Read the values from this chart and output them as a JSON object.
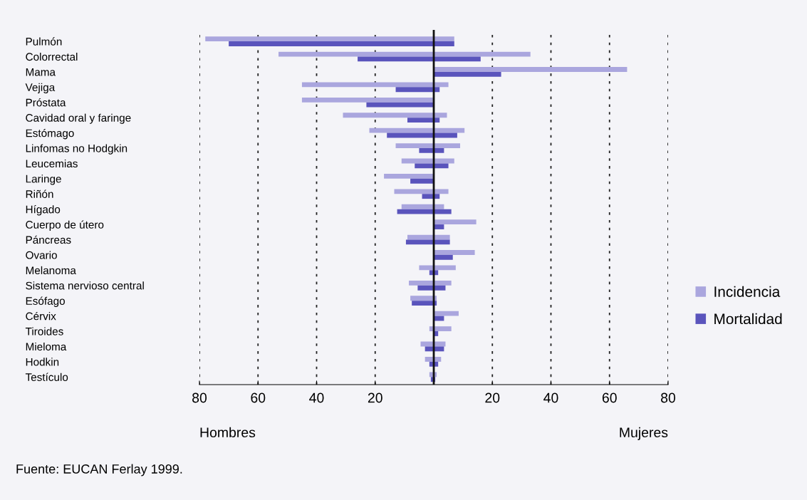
{
  "chart_data": {
    "type": "bar",
    "orientation": "horizontal",
    "categories": [
      "Pulmón",
      "Colorrectal",
      "Mama",
      "Vejiga",
      "Próstata",
      "Cavidad oral y faringe",
      "Estómago",
      "Linfomas no Hodgkin",
      "Leucemias",
      "Laringe",
      "Riñón",
      "Hígado",
      "Cuerpo de útero",
      "Páncreas",
      "Ovario",
      "Melanoma",
      "Sistema nervioso central",
      "Esófago",
      "Cérvix",
      "Tiroides",
      "Mieloma",
      "Hodkin",
      "Testículo"
    ],
    "series": [
      {
        "name": "Incidencia",
        "color": "#aaa6de",
        "base": [
          -78,
          -53,
          0,
          -45,
          -45,
          -31,
          -22,
          -13,
          -11,
          -17,
          -13.5,
          -11,
          0,
          -9,
          0,
          -5,
          -8.5,
          -8,
          0,
          -1.5,
          -4.5,
          -3,
          -1.5
        ],
        "values": [
          85,
          86,
          66,
          50,
          45,
          35.5,
          32.5,
          22,
          18,
          17,
          18.5,
          14.5,
          14.5,
          14.5,
          14,
          12.5,
          14.5,
          9,
          8.5,
          7.5,
          8.5,
          5.5,
          2.5
        ]
      },
      {
        "name": "Mortalidad",
        "color": "#5a54bc",
        "base": [
          -70,
          -26,
          0,
          -13,
          -23,
          -9,
          -16,
          -5,
          -6.5,
          -8,
          -4,
          -12.5,
          0,
          -9.5,
          0,
          -1.5,
          -5.5,
          -7.5,
          0,
          0,
          -3,
          -1.5,
          -1
        ],
        "values": [
          77,
          42,
          23,
          15,
          23,
          11,
          24,
          8.5,
          11.5,
          8,
          6,
          18.5,
          3.5,
          15,
          6.5,
          3,
          9.5,
          8.5,
          3.5,
          1.5,
          6.5,
          3,
          1.5
        ]
      }
    ],
    "xlim": [
      -80,
      80
    ],
    "xticks": [
      {
        "value": -80,
        "label": "80"
      },
      {
        "value": -60,
        "label": "60"
      },
      {
        "value": -40,
        "label": "40"
      },
      {
        "value": -20,
        "label": "20"
      },
      {
        "value": 20,
        "label": "20"
      },
      {
        "value": 40,
        "label": "40"
      },
      {
        "value": 60,
        "label": "60"
      },
      {
        "value": 80,
        "label": "80"
      }
    ],
    "grid": "x",
    "ref_lines": [
      {
        "axis": "x",
        "value": 0,
        "color": "#111111",
        "line_style": "solid"
      }
    ],
    "legend": "right",
    "annotations": [
      "Hombres",
      "Mujeres",
      "Fuente: EUCAN Ferlay 1999."
    ]
  }
}
